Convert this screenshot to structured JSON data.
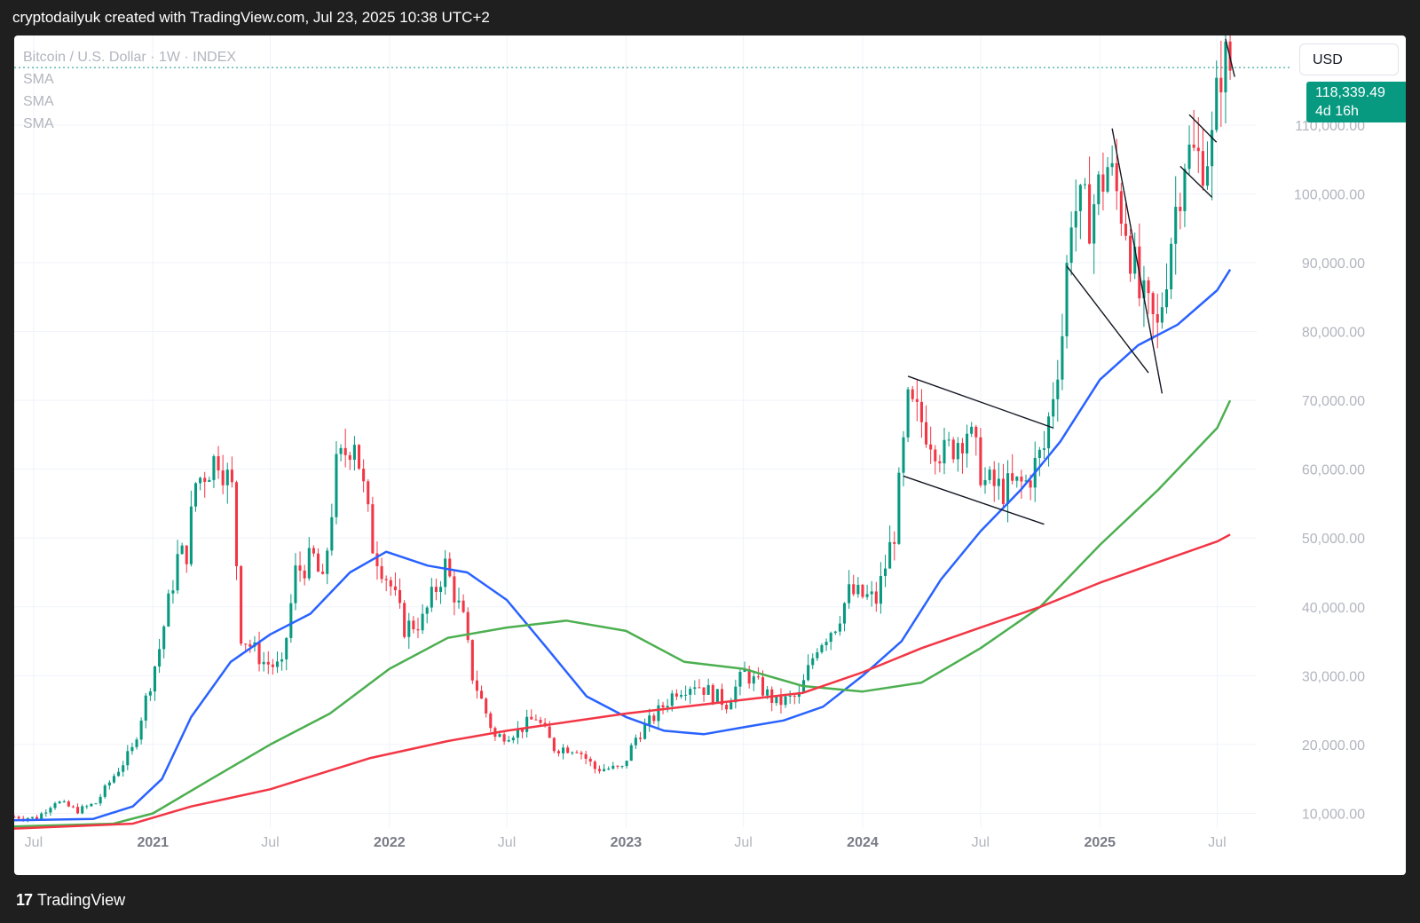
{
  "header": {
    "caption": "cryptodailyuk created with TradingView.com, Jul 23, 2025 10:38 UTC+2"
  },
  "legend": {
    "symbol": "Bitcoin / U.S. Dollar · 1W · INDEX",
    "indicators": [
      "SMA",
      "SMA",
      "SMA"
    ]
  },
  "currency_button": "USD",
  "price_tag": {
    "price": "118,339.49",
    "countdown": "4d 16h",
    "color": "#089981"
  },
  "footer": {
    "logo": "17",
    "brand": "TradingView"
  },
  "colors": {
    "up": "#089981",
    "down": "#f23645",
    "sma_fast": "#2962ff",
    "sma_mid": "#4caf50",
    "sma_slow": "#f23645",
    "grid": "#f0f3fa"
  },
  "chart_data": {
    "type": "candlestick",
    "title": "",
    "symbol": "Bitcoin / U.S. Dollar",
    "interval": "1W",
    "xlim": [
      "2020-06-01",
      "2025-08-31"
    ],
    "ylim": [
      8000,
      123000
    ],
    "y_ticks": [
      10000,
      20000,
      30000,
      40000,
      50000,
      60000,
      70000,
      80000,
      90000,
      100000,
      110000
    ],
    "y_tick_labels": [
      "10,000.00",
      "20,000.00",
      "30,000.00",
      "40,000.00",
      "50,000.00",
      "60,000.00",
      "70,000.00",
      "80,000.00",
      "90,000.00",
      "100,000.00",
      "110,000.00"
    ],
    "x_ticks": [
      {
        "date": "2020-07-01",
        "label": "Jul",
        "major": false
      },
      {
        "date": "2021-01-01",
        "label": "2021",
        "major": true
      },
      {
        "date": "2021-07-01",
        "label": "Jul",
        "major": false
      },
      {
        "date": "2022-01-01",
        "label": "2022",
        "major": true
      },
      {
        "date": "2022-07-01",
        "label": "Jul",
        "major": false
      },
      {
        "date": "2023-01-01",
        "label": "2023",
        "major": true
      },
      {
        "date": "2023-07-01",
        "label": "Jul",
        "major": false
      },
      {
        "date": "2024-01-01",
        "label": "2024",
        "major": true
      },
      {
        "date": "2024-07-01",
        "label": "Jul",
        "major": false
      },
      {
        "date": "2025-01-01",
        "label": "2025",
        "major": true
      },
      {
        "date": "2025-07-01",
        "label": "Jul",
        "major": false
      }
    ],
    "last_price": 118339.49,
    "price_series": [
      [
        "2020-06-01",
        9500
      ],
      [
        "2020-07-06",
        9300
      ],
      [
        "2020-08-03",
        11800
      ],
      [
        "2020-09-07",
        10400
      ],
      [
        "2020-10-05",
        11500
      ],
      [
        "2020-11-02",
        15500
      ],
      [
        "2020-11-30",
        19200
      ],
      [
        "2020-12-28",
        29000
      ],
      [
        "2021-01-11",
        34000
      ],
      [
        "2021-02-08",
        47000
      ],
      [
        "2021-02-22",
        48000
      ],
      [
        "2021-03-08",
        58000
      ],
      [
        "2021-04-12",
        62000
      ],
      [
        "2021-05-03",
        57000
      ],
      [
        "2021-05-17",
        36000
      ],
      [
        "2021-06-21",
        32000
      ],
      [
        "2021-07-19",
        31000
      ],
      [
        "2021-08-09",
        45000
      ],
      [
        "2021-09-06",
        47000
      ],
      [
        "2021-09-20",
        43000
      ],
      [
        "2021-10-11",
        60000
      ],
      [
        "2021-11-08",
        65000
      ],
      [
        "2021-12-06",
        49000
      ],
      [
        "2022-01-03",
        43000
      ],
      [
        "2022-01-24",
        37000
      ],
      [
        "2022-02-21",
        38000
      ],
      [
        "2022-03-28",
        46000
      ],
      [
        "2022-04-25",
        38000
      ],
      [
        "2022-05-09",
        30000
      ],
      [
        "2022-06-13",
        21000
      ],
      [
        "2022-07-18",
        22000
      ],
      [
        "2022-08-15",
        24000
      ],
      [
        "2022-09-12",
        19500
      ],
      [
        "2022-10-17",
        19500
      ],
      [
        "2022-11-14",
        16500
      ],
      [
        "2022-12-26",
        16500
      ],
      [
        "2023-01-16",
        21000
      ],
      [
        "2023-02-13",
        24000
      ],
      [
        "2023-03-20",
        28000
      ],
      [
        "2023-04-17",
        29000
      ],
      [
        "2023-06-05",
        26000
      ],
      [
        "2023-07-03",
        30500
      ],
      [
        "2023-08-21",
        26000
      ],
      [
        "2023-09-25",
        27000
      ],
      [
        "2023-10-23",
        34500
      ],
      [
        "2023-11-20",
        37500
      ],
      [
        "2023-12-11",
        42000
      ],
      [
        "2024-01-22",
        41000
      ],
      [
        "2024-02-19",
        51000
      ],
      [
        "2024-03-11",
        69000
      ],
      [
        "2024-04-01",
        67000
      ],
      [
        "2024-05-06",
        62000
      ],
      [
        "2024-06-10",
        66000
      ],
      [
        "2024-07-08",
        58000
      ],
      [
        "2024-08-05",
        57000
      ],
      [
        "2024-09-09",
        58000
      ],
      [
        "2024-10-07",
        63000
      ],
      [
        "2024-11-04",
        80000
      ],
      [
        "2024-11-18",
        98000
      ],
      [
        "2024-12-16",
        97000
      ],
      [
        "2025-01-13",
        104000
      ],
      [
        "2025-02-10",
        96000
      ],
      [
        "2025-03-03",
        85000
      ],
      [
        "2025-03-31",
        80000
      ],
      [
        "2025-04-21",
        94000
      ],
      [
        "2025-05-12",
        106000
      ],
      [
        "2025-06-02",
        105000
      ],
      [
        "2025-06-23",
        107000
      ],
      [
        "2025-07-07",
        119000
      ],
      [
        "2025-07-21",
        118339
      ]
    ],
    "series": [
      {
        "name": "SMA",
        "color": "#2962ff",
        "points": [
          [
            "2020-06-01",
            9000
          ],
          [
            "2020-10-01",
            9200
          ],
          [
            "2020-12-01",
            11000
          ],
          [
            "2021-01-15",
            15000
          ],
          [
            "2021-03-01",
            24000
          ],
          [
            "2021-05-01",
            32000
          ],
          [
            "2021-07-01",
            36000
          ],
          [
            "2021-09-01",
            39000
          ],
          [
            "2021-11-01",
            45000
          ],
          [
            "2021-12-27",
            48000
          ],
          [
            "2022-03-01",
            46000
          ],
          [
            "2022-05-01",
            45000
          ],
          [
            "2022-07-01",
            41000
          ],
          [
            "2022-09-01",
            34000
          ],
          [
            "2022-11-01",
            27000
          ],
          [
            "2023-01-01",
            24000
          ],
          [
            "2023-03-01",
            22000
          ],
          [
            "2023-05-01",
            21500
          ],
          [
            "2023-07-01",
            22500
          ],
          [
            "2023-09-01",
            23500
          ],
          [
            "2023-11-01",
            25500
          ],
          [
            "2024-01-01",
            30000
          ],
          [
            "2024-03-01",
            35000
          ],
          [
            "2024-05-01",
            44000
          ],
          [
            "2024-07-01",
            51000
          ],
          [
            "2024-09-01",
            57000
          ],
          [
            "2024-11-01",
            64000
          ],
          [
            "2025-01-01",
            73000
          ],
          [
            "2025-03-01",
            78000
          ],
          [
            "2025-05-01",
            81000
          ],
          [
            "2025-07-01",
            86000
          ],
          [
            "2025-07-21",
            89000
          ]
        ]
      },
      {
        "name": "SMA",
        "color": "#4caf50",
        "points": [
          [
            "2020-06-01",
            8100
          ],
          [
            "2020-11-01",
            8500
          ],
          [
            "2021-01-01",
            10000
          ],
          [
            "2021-04-01",
            15000
          ],
          [
            "2021-07-01",
            20000
          ],
          [
            "2021-10-01",
            24500
          ],
          [
            "2022-01-01",
            31000
          ],
          [
            "2022-04-01",
            35500
          ],
          [
            "2022-07-01",
            37000
          ],
          [
            "2022-10-01",
            38000
          ],
          [
            "2023-01-01",
            36500
          ],
          [
            "2023-04-01",
            32000
          ],
          [
            "2023-07-01",
            31000
          ],
          [
            "2023-10-01",
            28500
          ],
          [
            "2024-01-01",
            27700
          ],
          [
            "2024-04-01",
            29000
          ],
          [
            "2024-07-01",
            34000
          ],
          [
            "2024-10-01",
            40000
          ],
          [
            "2025-01-01",
            49000
          ],
          [
            "2025-04-01",
            57000
          ],
          [
            "2025-07-01",
            66000
          ],
          [
            "2025-07-21",
            70000
          ]
        ]
      },
      {
        "name": "SMA",
        "color": "#f23645",
        "points": [
          [
            "2020-06-01",
            7800
          ],
          [
            "2020-12-01",
            8500
          ],
          [
            "2021-03-01",
            11000
          ],
          [
            "2021-07-01",
            13500
          ],
          [
            "2021-12-01",
            18000
          ],
          [
            "2022-04-01",
            20500
          ],
          [
            "2022-07-01",
            22000
          ],
          [
            "2023-01-01",
            24500
          ],
          [
            "2023-07-01",
            26500
          ],
          [
            "2023-10-01",
            27500
          ],
          [
            "2024-01-01",
            30500
          ],
          [
            "2024-04-01",
            34000
          ],
          [
            "2024-07-01",
            37000
          ],
          [
            "2024-10-01",
            40000
          ],
          [
            "2025-01-01",
            43500
          ],
          [
            "2025-04-01",
            46500
          ],
          [
            "2025-07-01",
            49500
          ],
          [
            "2025-07-21",
            50500
          ]
        ]
      }
    ],
    "trendlines": [
      [
        [
          "2024-03-11",
          73500
        ],
        [
          "2024-10-21",
          66000
        ]
      ],
      [
        [
          "2024-03-04",
          59000
        ],
        [
          "2024-10-07",
          52000
        ]
      ],
      [
        [
          "2025-01-20",
          109500
        ],
        [
          "2025-04-07",
          71000
        ]
      ],
      [
        [
          "2024-11-11",
          89500
        ],
        [
          "2025-03-17",
          74000
        ]
      ],
      [
        [
          "2025-05-19",
          111500
        ],
        [
          "2025-06-30",
          107500
        ]
      ],
      [
        [
          "2025-05-05",
          104000
        ],
        [
          "2025-06-23",
          99500
        ]
      ],
      [
        [
          "2025-07-14",
          122500
        ],
        [
          "2025-07-28",
          117000
        ]
      ]
    ]
  }
}
